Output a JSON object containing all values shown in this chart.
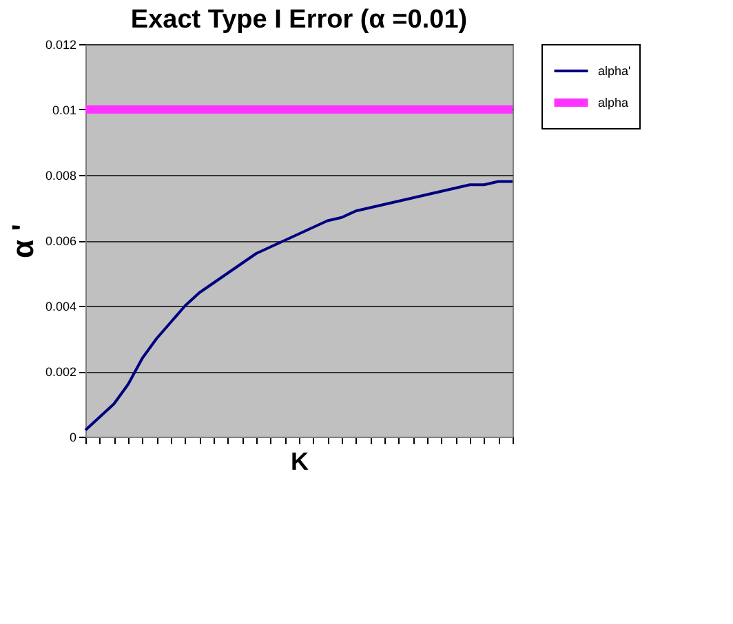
{
  "chart_data": {
    "type": "line",
    "title": "Exact Type I Error (α =0.01)",
    "xlabel": "K",
    "ylabel": "α '",
    "categories": [
      null,
      null,
      null,
      null,
      null,
      null,
      null,
      null,
      null,
      null,
      null,
      null,
      null,
      null,
      null,
      null,
      null,
      null,
      null,
      null,
      null,
      null,
      null,
      null,
      null,
      null,
      null,
      null,
      null,
      null,
      null
    ],
    "series": [
      {
        "name": "alpha'",
        "color": "#000080",
        "values": [
          0.0002,
          0.0006,
          0.001,
          0.0016,
          0.0024,
          0.003,
          0.0035,
          0.004,
          0.0044,
          0.0047,
          0.005,
          0.0053,
          0.0056,
          0.0058,
          0.006,
          0.0062,
          0.0064,
          0.0066,
          0.0067,
          0.0069,
          0.007,
          0.0071,
          0.0072,
          0.0073,
          0.0074,
          0.0075,
          0.0076,
          0.0077,
          0.0077,
          0.0078,
          0.0078
        ]
      },
      {
        "name": "alpha",
        "color": "#ff33ff",
        "values": [
          0.01,
          0.01,
          0.01,
          0.01,
          0.01,
          0.01,
          0.01,
          0.01,
          0.01,
          0.01,
          0.01,
          0.01,
          0.01,
          0.01,
          0.01,
          0.01,
          0.01,
          0.01,
          0.01,
          0.01,
          0.01,
          0.01,
          0.01,
          0.01,
          0.01,
          0.01,
          0.01,
          0.01,
          0.01,
          0.01,
          0.01
        ]
      }
    ],
    "ylim": [
      0,
      0.012
    ],
    "yticks": [
      0,
      0.002,
      0.004,
      0.006,
      0.008,
      0.01,
      0.012
    ],
    "grid": "y",
    "legend": "right",
    "tick_labels": "y",
    "marker": "none",
    "line_style": "solid"
  }
}
